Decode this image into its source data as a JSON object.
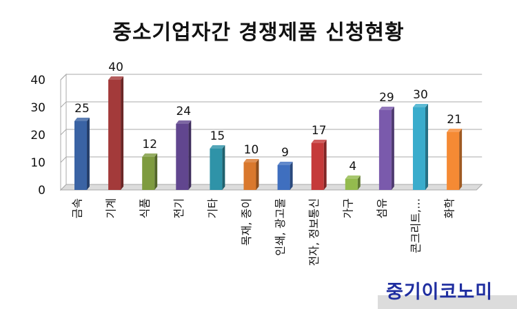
{
  "chart_data": {
    "type": "bar",
    "title": "중소기업자간 경쟁제품 신청현황",
    "xlabel": "",
    "ylabel": "",
    "ylim": [
      0,
      40
    ],
    "yticks": [
      0,
      10,
      20,
      30,
      40
    ],
    "grid": true,
    "legend": "none",
    "style": "3d-column",
    "categories": [
      "금속",
      "기계",
      "식품",
      "전기",
      "기타",
      "목재, 종이",
      "인쇄, 광고물",
      "전자, 정보통신",
      "가구",
      "섬유",
      "콘크리트,…",
      "화학"
    ],
    "values": [
      25,
      40,
      12,
      24,
      15,
      10,
      9,
      17,
      4,
      29,
      30,
      21
    ],
    "data_labels": [
      "25",
      "40",
      "12",
      "24",
      "15",
      "10",
      "9",
      "17",
      "4",
      "29",
      "30",
      "21"
    ],
    "colors": [
      "#3a63a4",
      "#a33a3a",
      "#7e9b3f",
      "#61468f",
      "#2f93a8",
      "#d9782d",
      "#3f6fbf",
      "#c53a3a",
      "#94bb4e",
      "#7a5aac",
      "#3aaccc",
      "#f58a34"
    ]
  },
  "watermark": "중기이코노미"
}
